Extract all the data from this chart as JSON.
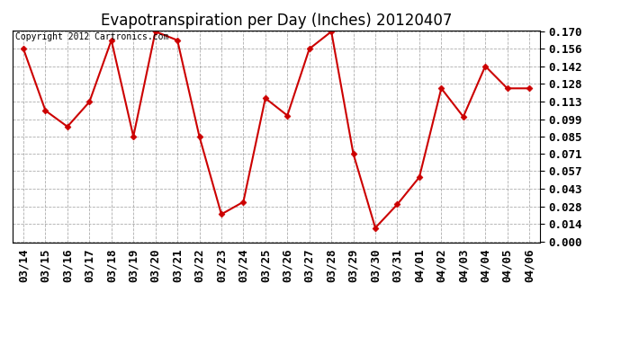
{
  "title": "Evapotranspiration per Day (Inches) 20120407",
  "copyright": "Copyright 2012 Cartronics.com",
  "x_labels": [
    "03/14",
    "03/15",
    "03/16",
    "03/17",
    "03/18",
    "03/19",
    "03/20",
    "03/21",
    "03/22",
    "03/23",
    "03/24",
    "03/25",
    "03/26",
    "03/27",
    "03/28",
    "03/29",
    "03/30",
    "03/31",
    "04/01",
    "04/02",
    "04/03",
    "04/04",
    "04/05",
    "04/06"
  ],
  "y_values": [
    0.156,
    0.106,
    0.093,
    0.113,
    0.163,
    0.085,
    0.17,
    0.163,
    0.085,
    0.022,
    0.032,
    0.116,
    0.102,
    0.156,
    0.17,
    0.071,
    0.011,
    0.03,
    0.052,
    0.124,
    0.101,
    0.142,
    0.124,
    0.124
  ],
  "line_color": "#cc0000",
  "marker_color": "#cc0000",
  "bg_color": "#ffffff",
  "plot_bg_color": "#ffffff",
  "grid_color": "#999999",
  "y_min": 0.0,
  "y_max": 0.17,
  "y_ticks": [
    0.0,
    0.014,
    0.028,
    0.043,
    0.057,
    0.071,
    0.085,
    0.099,
    0.113,
    0.128,
    0.142,
    0.156,
    0.17
  ],
  "title_fontsize": 12,
  "tick_fontsize": 9,
  "copyright_fontsize": 7
}
